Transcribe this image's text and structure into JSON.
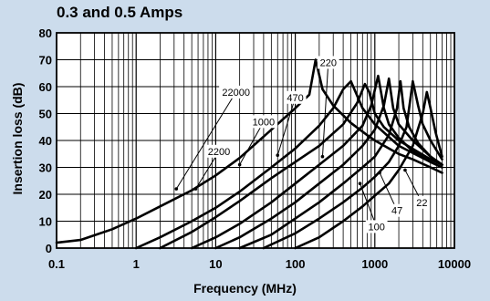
{
  "chart_data": {
    "type": "line",
    "title": "0.3 and 0.5 Amps",
    "xlabel": "Frequency (MHz)",
    "ylabel": "Insertion loss (dB)",
    "xscale": "log",
    "xlim": [
      0.1,
      10000
    ],
    "ylim": [
      0,
      80
    ],
    "grid": true,
    "x_ticks": [
      "0.1",
      "1",
      "10",
      "100",
      "1000",
      "10000"
    ],
    "y_ticks": [
      "0",
      "10",
      "20",
      "30",
      "40",
      "50",
      "60",
      "70",
      "80"
    ],
    "series": [
      {
        "name": "22000",
        "label_at": [
          18,
          58
        ],
        "arrow_to": [
          3.2,
          22
        ],
        "x": [
          0.1,
          0.2,
          0.5,
          1,
          2,
          5,
          10,
          20,
          50,
          100,
          150,
          180,
          220,
          300,
          500,
          800,
          1000,
          1500,
          2000,
          3000,
          5000,
          7000
        ],
        "y": [
          2,
          3,
          7,
          11,
          15.5,
          21.5,
          27,
          33.5,
          44,
          52,
          57,
          70,
          59,
          53,
          46.5,
          42,
          40,
          37,
          35,
          33,
          30,
          28
        ]
      },
      {
        "name": "2200",
        "label_at": [
          11,
          36
        ],
        "arrow_to": [
          5.6,
          22
        ],
        "x": [
          1,
          2,
          5,
          10,
          20,
          50,
          100,
          200,
          300,
          400,
          500,
          700,
          1000,
          2000,
          5000,
          7000
        ],
        "y": [
          0,
          4,
          10,
          15,
          21,
          30,
          37,
          45.5,
          52,
          59,
          62,
          52,
          46,
          38,
          32,
          30
        ]
      },
      {
        "name": "1000",
        "label_at": [
          40,
          47
        ],
        "arrow_to": [
          20,
          31
        ],
        "x": [
          2,
          5,
          10,
          20,
          50,
          100,
          200,
          400,
          600,
          750,
          850,
          1000,
          1300,
          2000,
          5000,
          7000
        ],
        "y": [
          0,
          6,
          11.5,
          17.5,
          26,
          32,
          38,
          46,
          54,
          61,
          58,
          50,
          45,
          40,
          33,
          31
        ]
      },
      {
        "name": "470",
        "label_at": [
          100,
          56
        ],
        "arrow_to": [
          60,
          34.5
        ],
        "x": [
          5,
          10,
          20,
          50,
          100,
          200,
          400,
          700,
          900,
          1100,
          1300,
          1500,
          2000,
          3000,
          5000,
          7000
        ],
        "y": [
          0,
          4,
          9,
          17,
          24,
          31,
          38,
          45.5,
          53,
          64,
          52,
          46,
          41,
          36,
          32,
          30
        ]
      },
      {
        "name": "220",
        "label_at": [
          260,
          69
        ],
        "arrow_to": [
          220,
          34
        ],
        "x": [
          10,
          20,
          50,
          100,
          200,
          400,
          700,
          1000,
          1300,
          1500,
          1700,
          2000,
          3000,
          5000,
          7000
        ],
        "y": [
          0,
          4,
          11,
          17,
          24,
          31,
          38,
          44,
          53,
          63,
          52,
          46,
          40,
          34,
          31
        ]
      },
      {
        "name": "100",
        "label_at": [
          1050,
          8
        ],
        "arrow_to": [
          650,
          24
        ],
        "x": [
          20,
          50,
          100,
          200,
          400,
          700,
          1000,
          1500,
          1900,
          2100,
          2300,
          2700,
          3500,
          5000,
          7000
        ],
        "y": [
          0,
          5,
          11,
          17,
          24,
          30,
          34,
          42,
          52,
          62,
          52,
          45,
          39,
          34,
          31
        ]
      },
      {
        "name": "47",
        "label_at": [
          1900,
          14
        ],
        "arrow_to": [
          1150,
          28
        ],
        "x": [
          40,
          100,
          200,
          400,
          700,
          1000,
          1500,
          2000,
          2500,
          3000,
          3500,
          4000,
          5000,
          7000
        ],
        "y": [
          0,
          5.5,
          11,
          17,
          22.5,
          26.5,
          32,
          38,
          45,
          62,
          53,
          46,
          40,
          33
        ]
      },
      {
        "name": "22",
        "label_at": [
          3900,
          17
        ],
        "arrow_to": [
          2400,
          29
        ],
        "x": [
          100,
          200,
          400,
          700,
          1000,
          1500,
          2000,
          3000,
          4000,
          4500,
          5000,
          5800,
          7000
        ],
        "y": [
          0,
          4,
          10,
          15.5,
          19.5,
          24,
          29,
          38,
          50,
          58,
          52,
          43,
          34
        ]
      }
    ]
  }
}
